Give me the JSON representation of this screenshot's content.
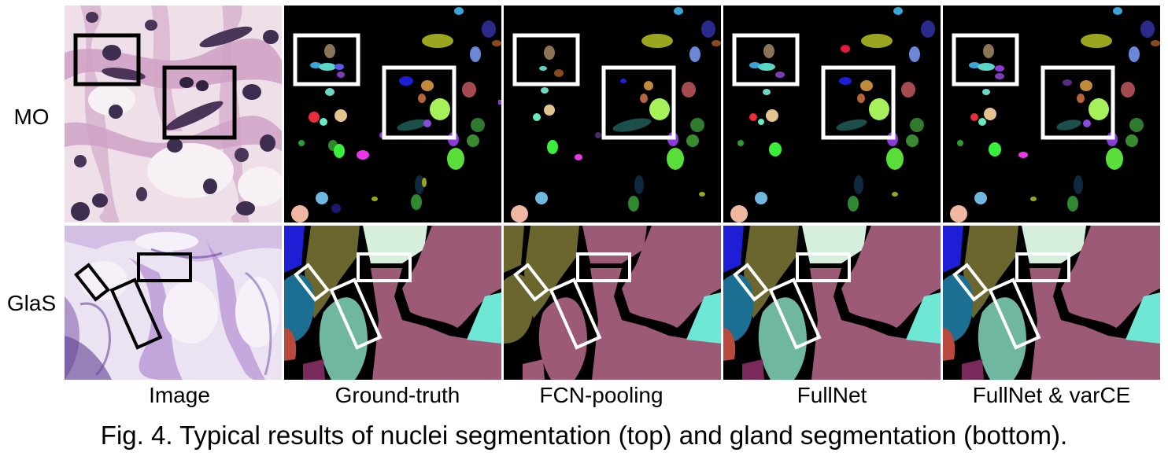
{
  "rows": [
    "MO",
    "GlaS"
  ],
  "columns": [
    "Image",
    "Ground-truth",
    "FCN-pooling",
    "FullNet",
    "FullNet & varCE"
  ],
  "caption": "Fig. 4. Typical results of nuclei segmentation (top) and gland segmentation (bottom).",
  "colors": {
    "histo_bg": "#efe3ee",
    "histo_tissue": "#c08bb6",
    "nucleus": "#3d2d4f",
    "seg_background": "#000000",
    "highlight_box_on_image": "#000000",
    "highlight_box_on_segmentation": "#ffffff",
    "gland_main": "#9d5a76",
    "gland_olive": "#6b652e",
    "gland_mint": "#6fb79e",
    "gland_light": "#d6efdc",
    "gland_teal": "#1a6f92",
    "gland_cyan": "#6ee8d4",
    "gland_blue": "#1d1ed6",
    "gland_red": "#b74a3d"
  }
}
